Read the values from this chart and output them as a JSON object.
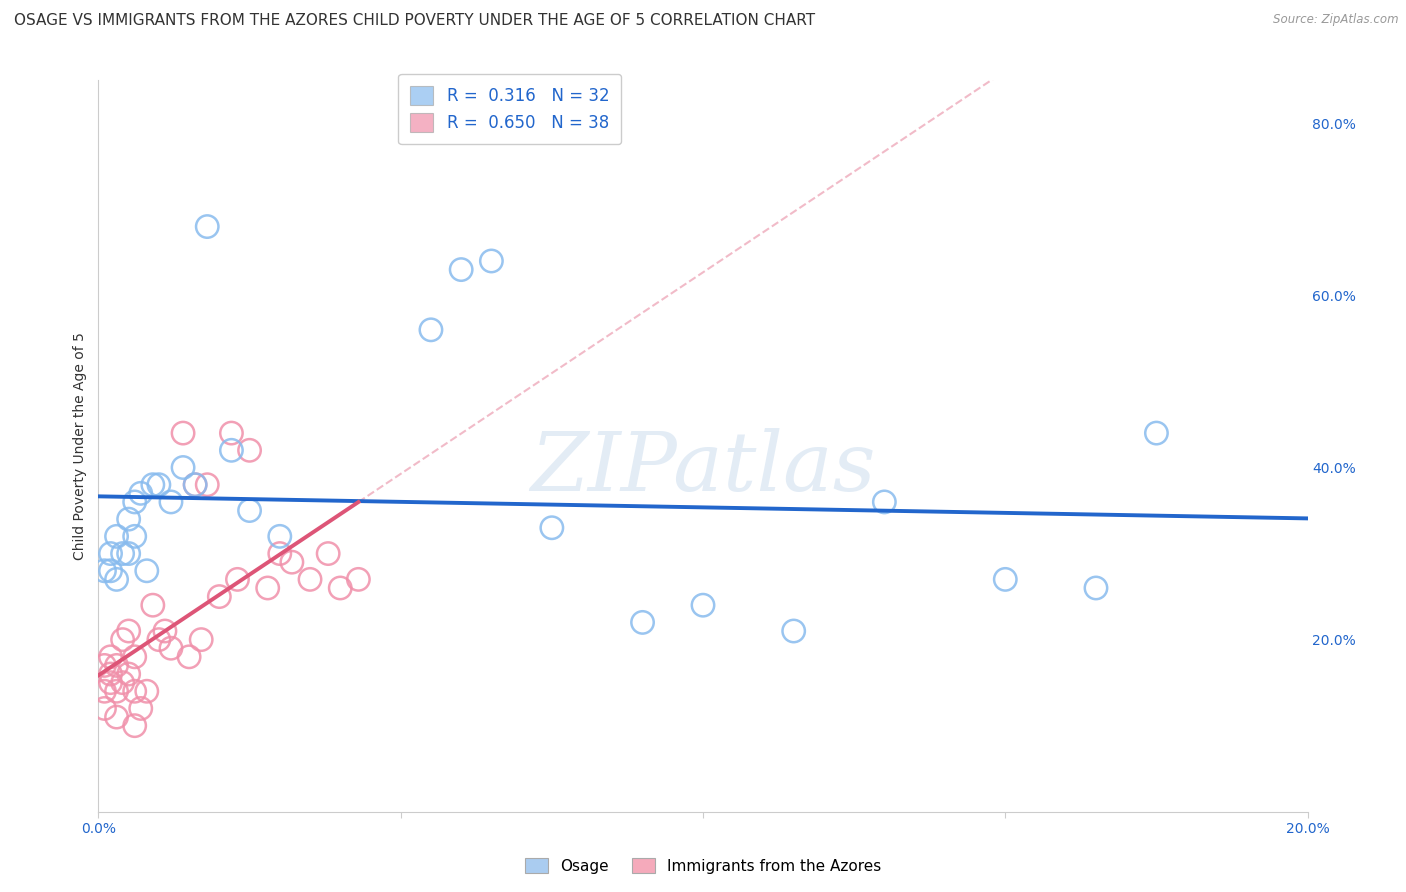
{
  "title": "OSAGE VS IMMIGRANTS FROM THE AZORES CHILD POVERTY UNDER THE AGE OF 5 CORRELATION CHART",
  "source": "Source: ZipAtlas.com",
  "ylabel": "Child Poverty Under the Age of 5",
  "xlim": [
    0.0,
    0.2
  ],
  "ylim": [
    0.0,
    0.85
  ],
  "yticks_right": [
    0.2,
    0.4,
    0.6,
    0.8
  ],
  "ytick_labels_right": [
    "20.0%",
    "40.0%",
    "60.0%",
    "80.0%"
  ],
  "watermark": "ZIPatlas",
  "bottom_legend": [
    "Osage",
    "Immigrants from the Azores"
  ],
  "bottom_legend_colors": [
    "#aaccf0",
    "#f5aabb"
  ],
  "osage_R": 0.316,
  "osage_N": 32,
  "azores_R": 0.65,
  "azores_N": 38,
  "osage_x": [
    0.001,
    0.002,
    0.002,
    0.003,
    0.003,
    0.004,
    0.005,
    0.005,
    0.006,
    0.006,
    0.007,
    0.008,
    0.009,
    0.01,
    0.012,
    0.014,
    0.016,
    0.018,
    0.022,
    0.025,
    0.03,
    0.055,
    0.06,
    0.065,
    0.075,
    0.09,
    0.1,
    0.115,
    0.13,
    0.15,
    0.165,
    0.175
  ],
  "osage_y": [
    0.28,
    0.28,
    0.3,
    0.27,
    0.32,
    0.3,
    0.3,
    0.34,
    0.32,
    0.36,
    0.37,
    0.28,
    0.38,
    0.38,
    0.36,
    0.4,
    0.38,
    0.68,
    0.42,
    0.35,
    0.32,
    0.56,
    0.63,
    0.64,
    0.33,
    0.22,
    0.24,
    0.21,
    0.36,
    0.27,
    0.26,
    0.44
  ],
  "azores_x": [
    0.001,
    0.001,
    0.001,
    0.002,
    0.002,
    0.002,
    0.003,
    0.003,
    0.003,
    0.004,
    0.004,
    0.005,
    0.005,
    0.006,
    0.006,
    0.006,
    0.007,
    0.008,
    0.009,
    0.01,
    0.011,
    0.012,
    0.014,
    0.015,
    0.016,
    0.017,
    0.018,
    0.02,
    0.022,
    0.023,
    0.025,
    0.028,
    0.03,
    0.032,
    0.035,
    0.038,
    0.04,
    0.043
  ],
  "azores_y": [
    0.17,
    0.14,
    0.12,
    0.15,
    0.18,
    0.16,
    0.11,
    0.14,
    0.17,
    0.15,
    0.2,
    0.16,
    0.21,
    0.14,
    0.18,
    0.1,
    0.12,
    0.14,
    0.24,
    0.2,
    0.21,
    0.19,
    0.44,
    0.18,
    0.38,
    0.2,
    0.38,
    0.25,
    0.44,
    0.27,
    0.42,
    0.26,
    0.3,
    0.29,
    0.27,
    0.3,
    0.26,
    0.27
  ],
  "osage_color": "#88bbee",
  "azores_color": "#f090aa",
  "osage_line_color": "#2266cc",
  "azores_line_color": "#dd5577",
  "title_fontsize": 11,
  "axis_label_fontsize": 10,
  "tick_fontsize": 10,
  "background_color": "#ffffff",
  "grid_color": "#dddddd",
  "blue_text_color": "#2266cc",
  "dark_text_color": "#333333"
}
